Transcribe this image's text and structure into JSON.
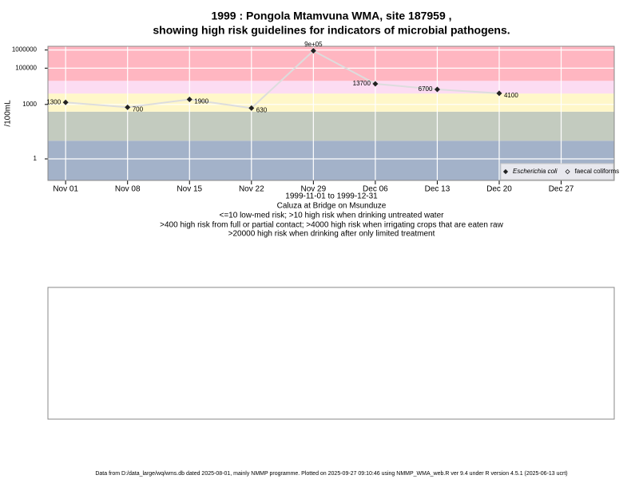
{
  "chart_data": {
    "type": "line",
    "title": "1999 : Pongola Mtamvuna WMA, site 187959 ,",
    "subtitle": "showing high risk guidelines for indicators of microbial pathogens.",
    "x_label": "1999-11-01 to 1999-12-31",
    "site": "Caluza at Bridge on Msunduze",
    "notes": [
      "<=10 low-med risk; >10 high risk when drinking untreated water",
      ">400 high risk from full or partial contact; >4000 high risk when irrigating crops that are eaten raw",
      ">20000 high risk when drinking after only limited treatment"
    ],
    "y_label": "/100mL",
    "footer": "Data from D:/data_large/wq/wms.db dated 2025-08-01, mainly NMMP programme. Plotted on 2025-09-27 09:10:46 using NMMP_WMA_web.R ver 9.4 under R version 4.5.1 (2025-06-13 ucrt)",
    "x": [
      "1999-11-01",
      "1999-11-08",
      "1999-11-15",
      "1999-11-22",
      "1999-11-29",
      "1999-12-06",
      "1999-12-13",
      "1999-12-20"
    ],
    "series": [
      {
        "name": "Escherichia coli",
        "color": "#222222",
        "values": [
          1300,
          700,
          1900,
          630,
          900000,
          13700,
          6700,
          4100
        ],
        "value_labels": [
          "1300",
          "700",
          "1900",
          "630",
          "9e+05",
          "13700",
          "6700",
          "4100"
        ]
      },
      {
        "name": "faecal coliforms",
        "color": "#222222",
        "values": [
          null,
          null,
          null,
          null,
          null,
          null,
          null,
          null
        ]
      }
    ],
    "line_color": "#dddddd",
    "log_y": true,
    "ylim": [
      0.065,
      1600000
    ],
    "yticks": [
      1,
      1000,
      100000,
      1000000
    ],
    "xlim": [
      "1999-10-30",
      "2000-01-02"
    ],
    "xticks": [
      {
        "value": "1999-11-01",
        "label": "Nov 01"
      },
      {
        "value": "1999-11-08",
        "label": "Nov 08"
      },
      {
        "value": "1999-11-15",
        "label": "Nov 15"
      },
      {
        "value": "1999-11-22",
        "label": "Nov 22"
      },
      {
        "value": "1999-11-29",
        "label": "Nov 29"
      },
      {
        "value": "1999-12-06",
        "label": "Dec 06"
      },
      {
        "value": "1999-12-13",
        "label": "Dec 13"
      },
      {
        "value": "1999-12-20",
        "label": "Dec 20"
      },
      {
        "value": "1999-12-27",
        "label": "Dec 27"
      }
    ],
    "risk_thresholds": [
      10,
      400,
      4000,
      20000
    ],
    "risk_colors": [
      "#a3b2c9",
      "#c3cbbf",
      "#fff7c9",
      "#fcdcf2",
      "#ffb6c1"
    ],
    "grid": true,
    "legend": "bottom-right"
  }
}
